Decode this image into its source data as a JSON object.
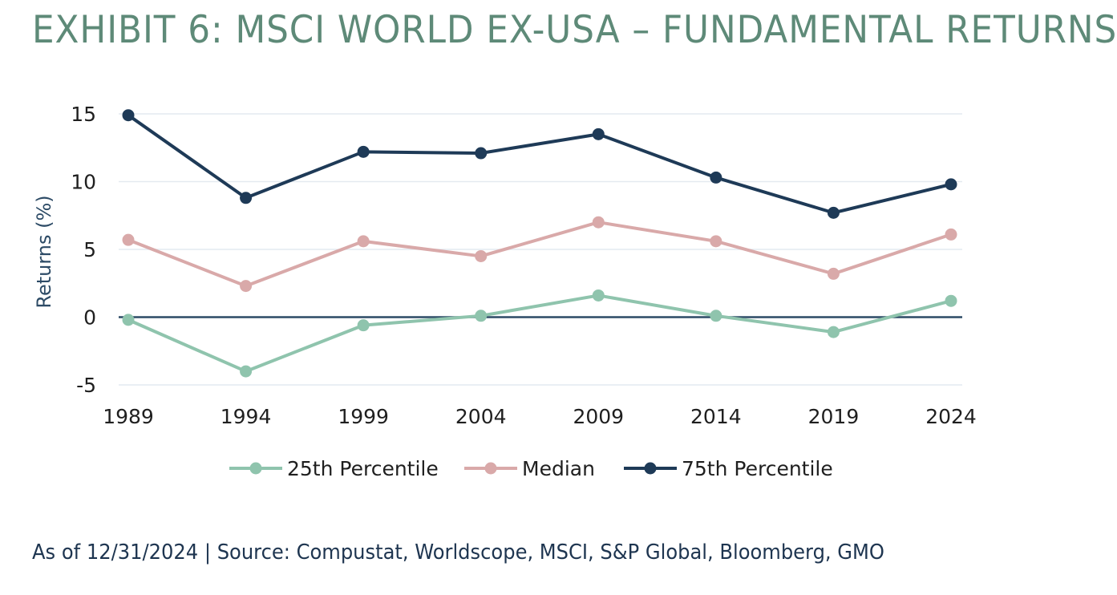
{
  "title": "EXHIBIT 6: MSCI WORLD EX-USA – FUNDAMENTAL RETURNS",
  "source_note": "As of 12/31/2024 | Source: Compustat, Worldscope, MSCI, S&P Global, Bloomberg, GMO",
  "chart_data": {
    "type": "line",
    "x": [
      "1989",
      "1994",
      "1999",
      "2004",
      "2009",
      "2014",
      "2019",
      "2024"
    ],
    "ylabel": "Returns (%)",
    "xlabel": "",
    "ylim": [
      -5,
      15
    ],
    "yticks": [
      "15",
      "10",
      "5",
      "0",
      "-5"
    ],
    "grid": true,
    "legend_position": "bottom-center",
    "series": [
      {
        "name": "25th Percentile",
        "color": "#8fc4ad",
        "values": [
          -0.2,
          -4.0,
          -0.6,
          0.1,
          1.6,
          0.1,
          -1.1,
          1.2
        ]
      },
      {
        "name": "Median",
        "color": "#d9a9a9",
        "values": [
          5.7,
          2.3,
          5.6,
          4.5,
          7.0,
          5.6,
          3.2,
          6.1
        ]
      },
      {
        "name": "75th Percentile",
        "color": "#1e3a57",
        "values": [
          14.9,
          8.8,
          12.2,
          12.1,
          13.5,
          10.3,
          7.7,
          9.8
        ]
      }
    ]
  }
}
